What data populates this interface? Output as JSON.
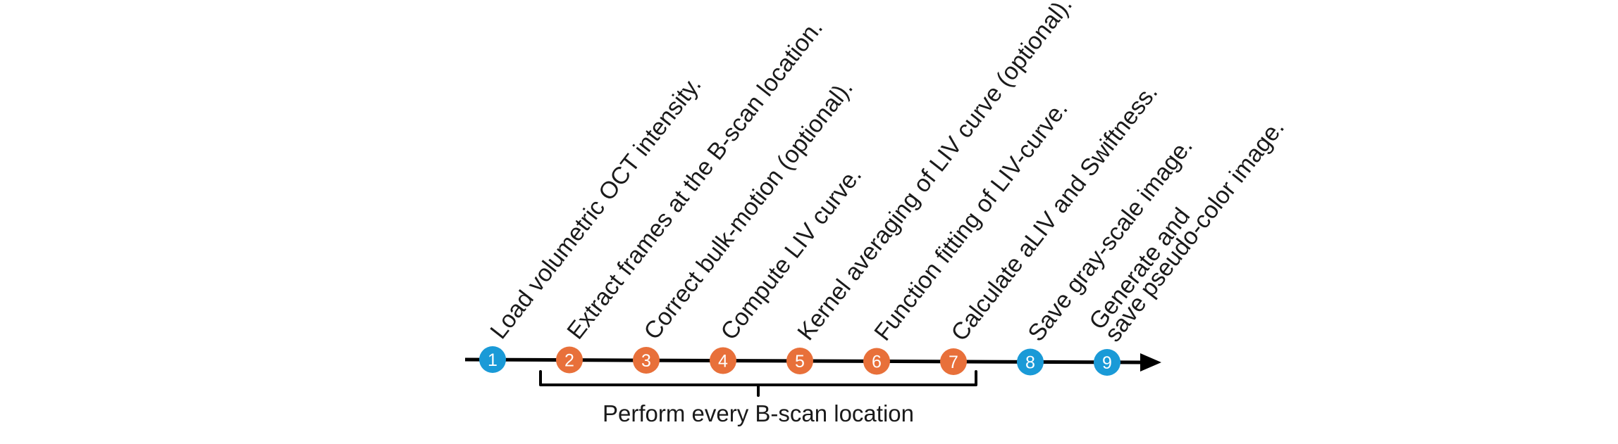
{
  "colors": {
    "background": "#ffffff",
    "line": "#000000",
    "step_blue": "#1a9ad7",
    "step_orange": "#e8703a",
    "text": "#1a1a1a"
  },
  "steps": [
    {
      "number": "1",
      "color": "blue",
      "lines": [
        "Load volumetric OCT intensity."
      ]
    },
    {
      "number": "2",
      "color": "orange",
      "lines": [
        "Extract frames at the B-scan location."
      ]
    },
    {
      "number": "3",
      "color": "orange",
      "lines": [
        "Correct bulk-motion (optional)."
      ]
    },
    {
      "number": "4",
      "color": "orange",
      "lines": [
        "Compute LIV curve."
      ]
    },
    {
      "number": "5",
      "color": "orange",
      "lines": [
        "Kernel averaging of LIV curve (optional)."
      ]
    },
    {
      "number": "6",
      "color": "orange",
      "lines": [
        "Function fitting of LIV-curve."
      ]
    },
    {
      "number": "7",
      "color": "orange",
      "lines": [
        "Calculate aLIV and Swiftness."
      ]
    },
    {
      "number": "8",
      "color": "blue",
      "lines": [
        "Save gray-scale image."
      ]
    },
    {
      "number": "9",
      "color": "blue",
      "lines": [
        "Generate and",
        "save pseudo-color image."
      ]
    }
  ],
  "brace": {
    "caption": "Perform every B-scan location",
    "from_step": "2",
    "to_step": "7"
  }
}
